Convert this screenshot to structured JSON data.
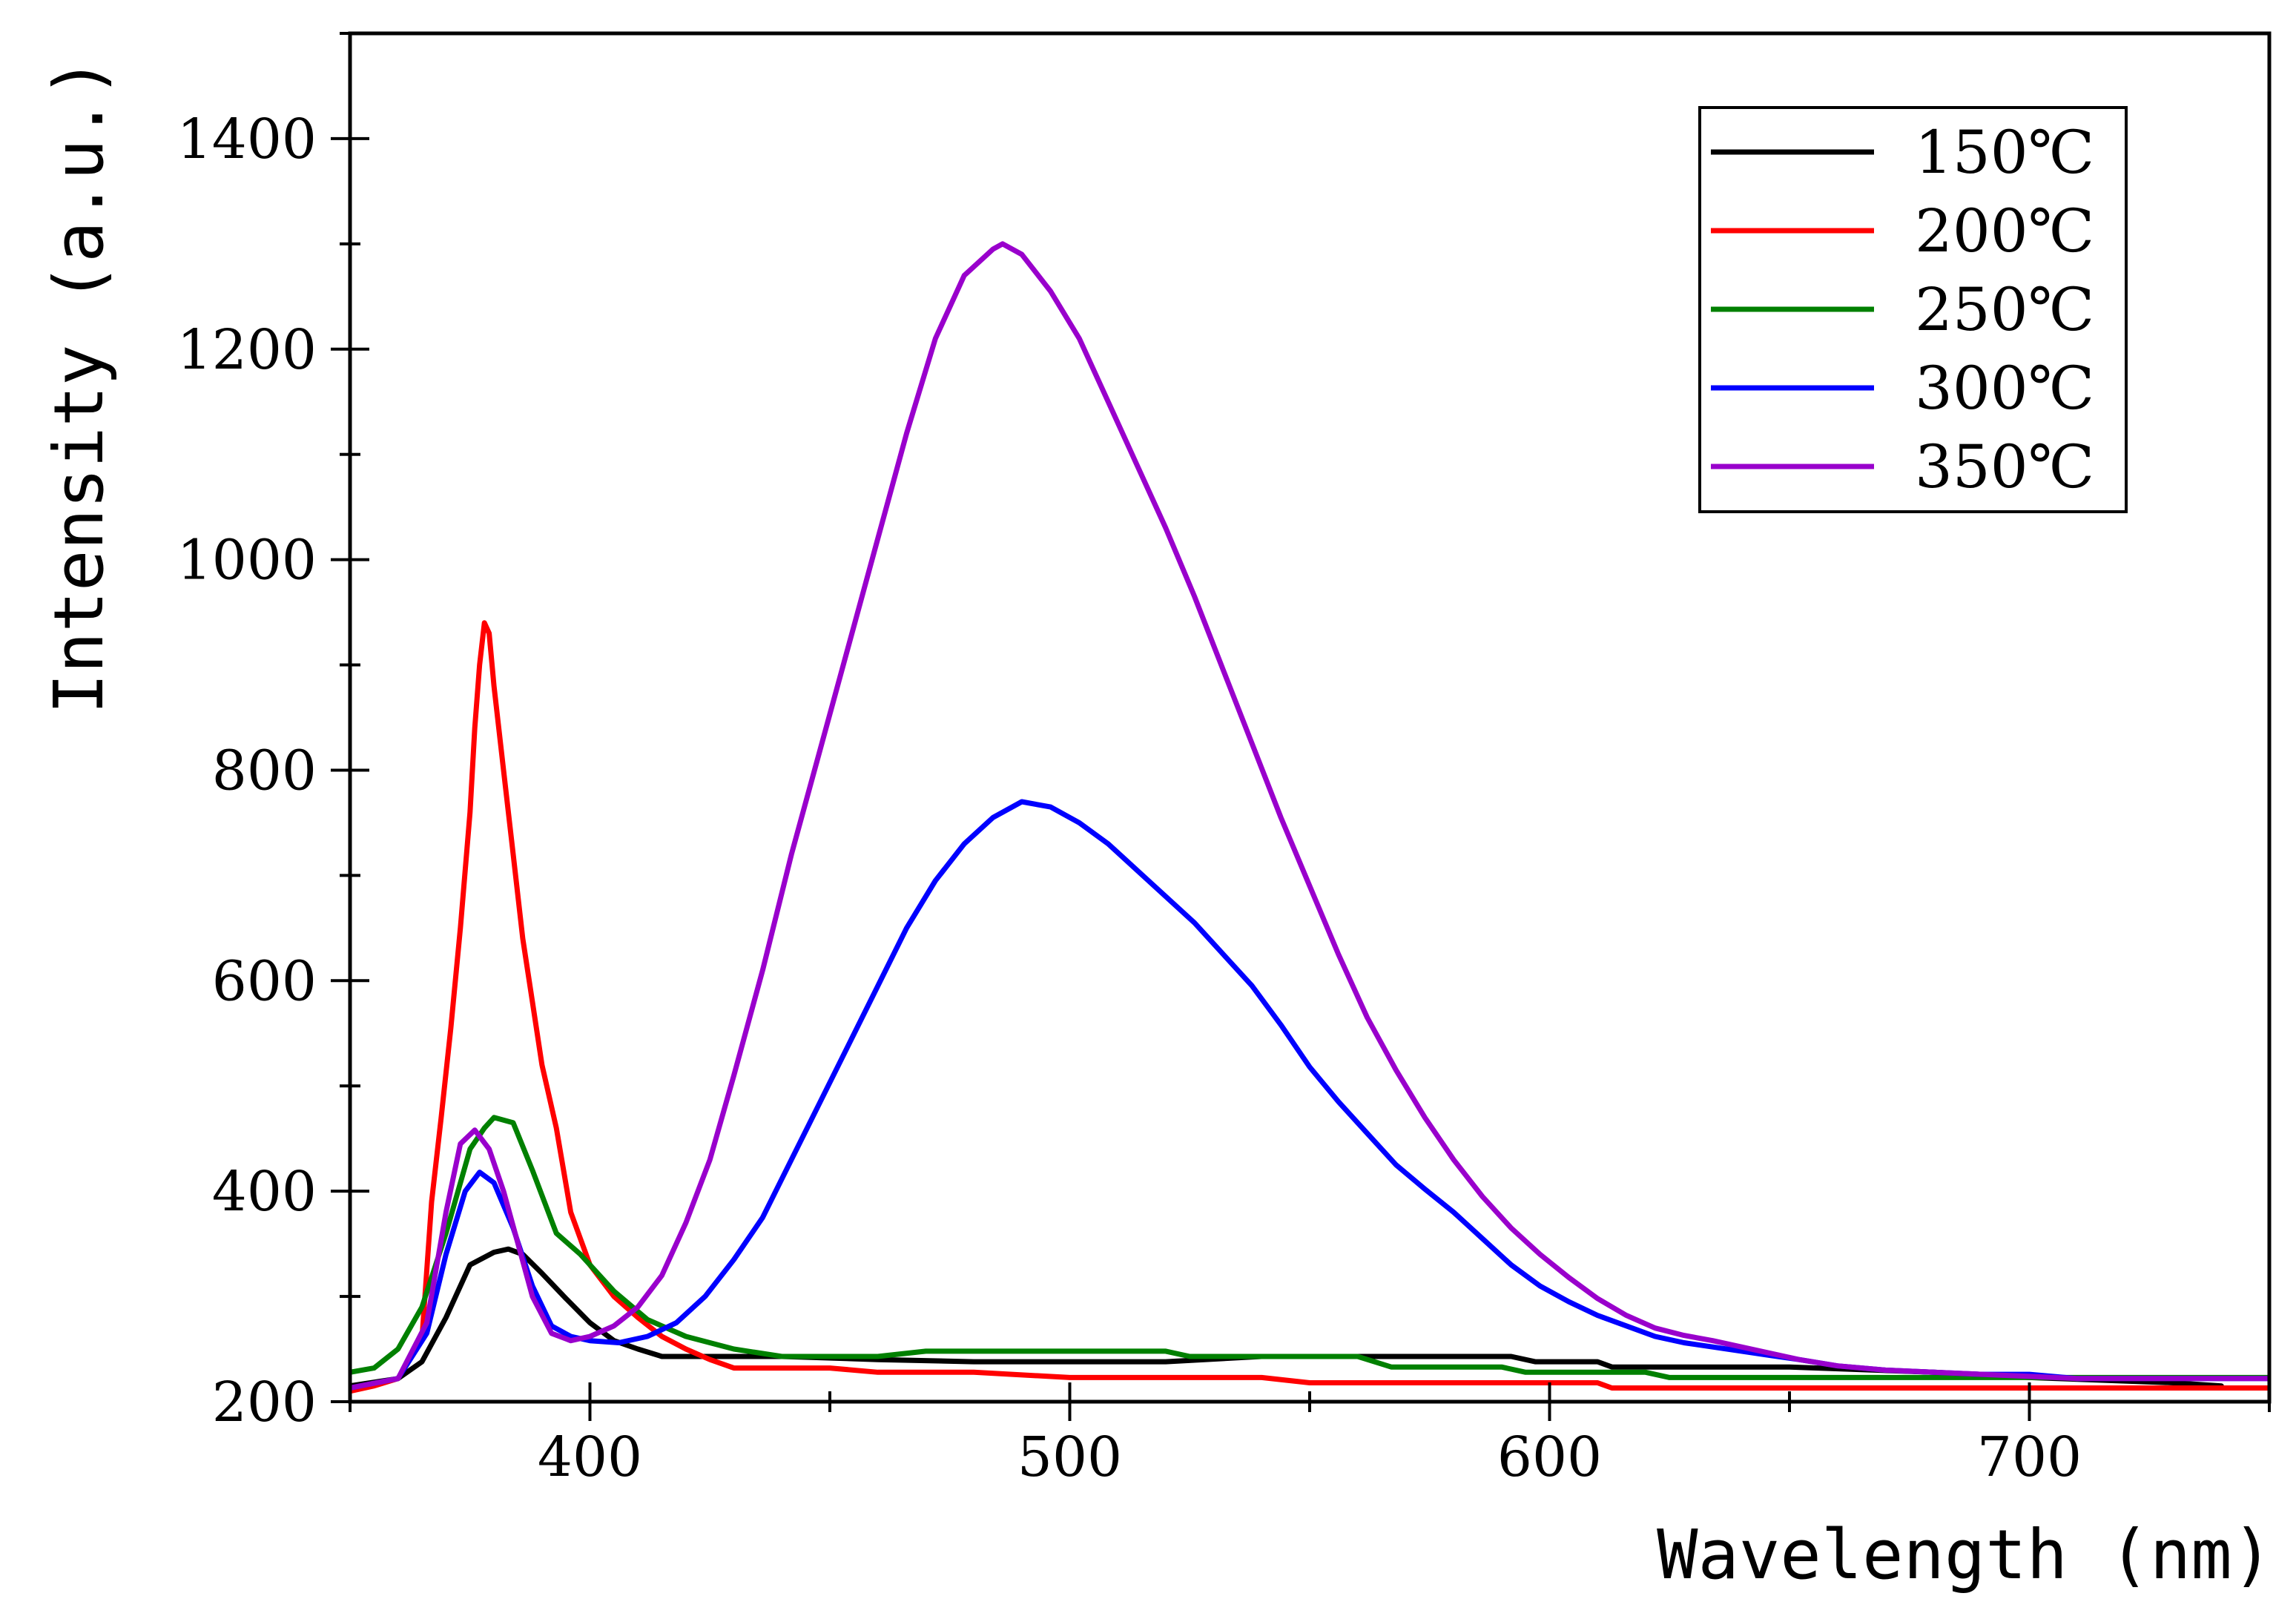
{
  "chart_data": {
    "type": "line",
    "title": "",
    "xlabel": "Wavelength (nm)",
    "ylabel": "Intensity (a.u.)",
    "xlim": [
      350,
      750
    ],
    "ylim": [
      200,
      1500
    ],
    "xticks": [
      400,
      500,
      600,
      700
    ],
    "yticks": [
      200,
      400,
      600,
      800,
      1000,
      1200,
      1400
    ],
    "xtick_labels": [
      "400",
      "500",
      "600",
      "700"
    ],
    "ytick_labels": [
      "200",
      "400",
      "600",
      "800",
      "1000",
      "1200",
      "1400"
    ],
    "legend_position": "top-right",
    "series": [
      {
        "name": "150℃",
        "color": "#000000",
        "x": [
          350,
          360,
          365,
          370,
          375,
          380,
          383,
          386,
          390,
          395,
          400,
          405,
          410,
          415,
          420,
          430,
          440,
          460,
          480,
          500,
          520,
          540,
          560,
          580,
          592,
          597,
          610,
          613,
          650,
          680,
          700,
          730,
          740
        ],
        "y": [
          215,
          222,
          238,
          280,
          330,
          342,
          345,
          340,
          322,
          298,
          275,
          258,
          250,
          243,
          243,
          243,
          243,
          240,
          238,
          238,
          238,
          243,
          243,
          243,
          243,
          238,
          238,
          233,
          233,
          228,
          223,
          218,
          215
        ]
      },
      {
        "name": "200℃",
        "color": "#ff0000",
        "x": [
          350,
          355,
          360,
          365,
          367,
          369,
          371,
          373,
          375,
          376,
          377,
          378,
          379,
          380,
          382,
          384,
          386,
          388,
          390,
          393,
          396,
          400,
          405,
          410,
          415,
          420,
          425,
          430,
          440,
          450,
          460,
          480,
          500,
          520,
          540,
          550,
          580,
          610,
          613,
          640,
          700,
          750
        ],
        "y": [
          210,
          215,
          222,
          260,
          390,
          470,
          555,
          650,
          760,
          840,
          900,
          940,
          930,
          880,
          800,
          720,
          640,
          580,
          520,
          460,
          380,
          330,
          300,
          280,
          262,
          250,
          240,
          232,
          232,
          232,
          228,
          228,
          223,
          223,
          223,
          218,
          218,
          218,
          213,
          213,
          213,
          213
        ]
      },
      {
        "name": "250℃",
        "color": "#008000",
        "x": [
          350,
          355,
          360,
          365,
          370,
          375,
          378,
          380,
          384,
          388,
          393,
          398,
          405,
          412,
          420,
          430,
          440,
          460,
          470,
          480,
          500,
          520,
          525,
          540,
          560,
          567,
          590,
          595,
          620,
          625,
          650,
          700,
          750
        ],
        "y": [
          228,
          232,
          250,
          290,
          360,
          440,
          460,
          470,
          465,
          420,
          360,
          340,
          305,
          278,
          262,
          250,
          243,
          243,
          248,
          248,
          248,
          248,
          243,
          243,
          243,
          233,
          233,
          228,
          228,
          223,
          223,
          223,
          223
        ]
      },
      {
        "name": "300℃",
        "color": "#0000ff",
        "x": [
          350,
          360,
          366,
          370,
          374,
          377,
          380,
          384,
          388,
          392,
          396,
          400,
          406,
          412,
          418,
          424,
          430,
          436,
          442,
          448,
          454,
          460,
          466,
          472,
          478,
          484,
          490,
          496,
          502,
          508,
          514,
          520,
          526,
          532,
          538,
          544,
          550,
          556,
          562,
          568,
          574,
          580,
          586,
          592,
          598,
          604,
          610,
          616,
          622,
          628,
          634,
          640,
          646,
          652,
          660,
          670,
          680,
          690,
          700,
          710,
          720,
          730,
          740,
          750
        ],
        "y": [
          213,
          222,
          265,
          340,
          400,
          418,
          408,
          365,
          310,
          272,
          262,
          258,
          256,
          262,
          275,
          300,
          335,
          375,
          430,
          485,
          540,
          595,
          650,
          695,
          730,
          755,
          770,
          765,
          750,
          730,
          705,
          680,
          655,
          625,
          595,
          558,
          518,
          485,
          455,
          425,
          402,
          380,
          355,
          330,
          310,
          295,
          282,
          272,
          262,
          256,
          252,
          248,
          244,
          240,
          234,
          230,
          228,
          226,
          226,
          222,
          222,
          222,
          222,
          222
        ]
      },
      {
        "name": "350℃",
        "color": "#9900cc",
        "x": [
          350,
          360,
          366,
          370,
          373,
          376,
          379,
          382,
          385,
          388,
          392,
          396,
          400,
          405,
          410,
          415,
          420,
          425,
          430,
          436,
          442,
          448,
          454,
          460,
          466,
          472,
          478,
          484,
          486,
          490,
          496,
          502,
          508,
          514,
          520,
          526,
          532,
          538,
          544,
          550,
          556,
          562,
          568,
          574,
          580,
          586,
          592,
          598,
          604,
          610,
          616,
          622,
          628,
          634,
          640,
          646,
          652,
          660,
          670,
          680,
          690,
          700,
          710,
          720,
          730,
          740,
          750
        ],
        "y": [
          213,
          222,
          275,
          380,
          445,
          458,
          440,
          400,
          350,
          300,
          265,
          258,
          262,
          272,
          290,
          320,
          370,
          430,
          510,
          610,
          720,
          820,
          920,
          1020,
          1120,
          1210,
          1270,
          1295,
          1300,
          1290,
          1255,
          1210,
          1150,
          1090,
          1030,
          965,
          895,
          825,
          755,
          690,
          625,
          565,
          515,
          470,
          430,
          395,
          365,
          340,
          318,
          298,
          282,
          270,
          263,
          258,
          252,
          246,
          240,
          234,
          230,
          228,
          226,
          224,
          222,
          222,
          222,
          222,
          222
        ]
      }
    ]
  }
}
